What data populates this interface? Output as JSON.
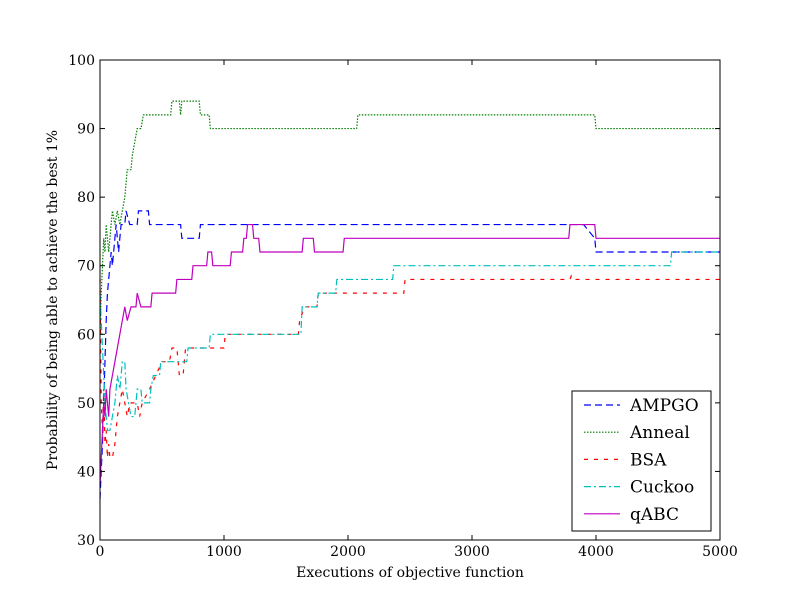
{
  "chart_data": {
    "type": "line",
    "title": "",
    "xlabel": "Executions of objective function",
    "ylabel": "Probability of being able to achieve the best 1%",
    "xlim": [
      0,
      5000
    ],
    "ylim": [
      30,
      100
    ],
    "xticks": [
      0,
      1000,
      2000,
      3000,
      4000,
      5000
    ],
    "yticks": [
      30,
      40,
      50,
      60,
      70,
      80,
      90,
      100
    ],
    "grid": false,
    "legend_position": "lower-right",
    "series": [
      {
        "name": "AMPGO",
        "color": "#0000ff",
        "dash": "7,4",
        "points": [
          [
            0,
            36
          ],
          [
            10,
            40
          ],
          [
            20,
            44
          ],
          [
            30,
            50
          ],
          [
            40,
            56
          ],
          [
            50,
            62
          ],
          [
            60,
            66
          ],
          [
            70,
            68
          ],
          [
            80,
            70
          ],
          [
            90,
            72
          ],
          [
            100,
            70
          ],
          [
            110,
            72
          ],
          [
            130,
            76
          ],
          [
            150,
            72
          ],
          [
            170,
            76
          ],
          [
            200,
            76
          ],
          [
            210,
            78
          ],
          [
            240,
            76
          ],
          [
            300,
            76
          ],
          [
            310,
            78
          ],
          [
            390,
            78
          ],
          [
            400,
            76
          ],
          [
            650,
            76
          ],
          [
            660,
            74
          ],
          [
            800,
            74
          ],
          [
            810,
            76
          ],
          [
            3900,
            76
          ],
          [
            3990,
            74
          ],
          [
            4000,
            72
          ],
          [
            5000,
            72
          ]
        ]
      },
      {
        "name": "Anneal",
        "color": "#008000",
        "dash": "1.5,1.5",
        "points": [
          [
            0,
            60
          ],
          [
            10,
            66
          ],
          [
            20,
            70
          ],
          [
            30,
            74
          ],
          [
            40,
            72
          ],
          [
            50,
            76
          ],
          [
            70,
            72
          ],
          [
            90,
            76
          ],
          [
            100,
            78
          ],
          [
            120,
            76
          ],
          [
            140,
            78
          ],
          [
            160,
            76
          ],
          [
            180,
            78
          ],
          [
            200,
            80
          ],
          [
            220,
            84
          ],
          [
            250,
            84
          ],
          [
            260,
            86
          ],
          [
            280,
            88
          ],
          [
            300,
            90
          ],
          [
            330,
            90
          ],
          [
            350,
            92
          ],
          [
            570,
            92
          ],
          [
            580,
            94
          ],
          [
            640,
            94
          ],
          [
            650,
            92
          ],
          [
            660,
            94
          ],
          [
            800,
            94
          ],
          [
            810,
            92
          ],
          [
            880,
            92
          ],
          [
            890,
            90
          ],
          [
            2070,
            90
          ],
          [
            2080,
            92
          ],
          [
            3990,
            92
          ],
          [
            4000,
            90
          ],
          [
            5000,
            90
          ]
        ]
      },
      {
        "name": "BSA",
        "color": "#ff0000",
        "dash": "4,6",
        "points": [
          [
            0,
            68
          ],
          [
            10,
            50
          ],
          [
            20,
            46
          ],
          [
            30,
            52
          ],
          [
            40,
            44
          ],
          [
            50,
            46
          ],
          [
            60,
            42
          ],
          [
            70,
            44
          ],
          [
            80,
            42
          ],
          [
            100,
            42
          ],
          [
            120,
            44
          ],
          [
            140,
            48
          ],
          [
            160,
            50
          ],
          [
            180,
            52
          ],
          [
            200,
            50
          ],
          [
            220,
            48
          ],
          [
            240,
            50
          ],
          [
            300,
            50
          ],
          [
            320,
            48
          ],
          [
            340,
            50
          ],
          [
            400,
            52
          ],
          [
            450,
            54
          ],
          [
            500,
            56
          ],
          [
            560,
            56
          ],
          [
            580,
            58
          ],
          [
            620,
            58
          ],
          [
            640,
            54
          ],
          [
            670,
            54
          ],
          [
            690,
            58
          ],
          [
            1000,
            58
          ],
          [
            1010,
            60
          ],
          [
            1600,
            60
          ],
          [
            1610,
            62
          ],
          [
            1650,
            64
          ],
          [
            1750,
            64
          ],
          [
            1760,
            66
          ],
          [
            2450,
            66
          ],
          [
            2460,
            68
          ],
          [
            3790,
            68
          ],
          [
            3800,
            68.5
          ],
          [
            3810,
            68
          ],
          [
            5000,
            68
          ]
        ]
      },
      {
        "name": "Cuckoo",
        "color": "#00bfbf",
        "dash": "7,3,2,3",
        "points": [
          [
            0,
            66
          ],
          [
            10,
            62
          ],
          [
            20,
            58
          ],
          [
            30,
            54
          ],
          [
            40,
            50
          ],
          [
            50,
            48
          ],
          [
            60,
            46
          ],
          [
            80,
            46
          ],
          [
            100,
            48
          ],
          [
            120,
            50
          ],
          [
            140,
            54
          ],
          [
            160,
            52
          ],
          [
            180,
            56
          ],
          [
            200,
            56
          ],
          [
            210,
            52
          ],
          [
            230,
            50
          ],
          [
            250,
            48
          ],
          [
            280,
            48
          ],
          [
            300,
            52
          ],
          [
            330,
            52
          ],
          [
            340,
            50
          ],
          [
            400,
            50
          ],
          [
            410,
            52
          ],
          [
            430,
            54
          ],
          [
            480,
            54
          ],
          [
            490,
            56
          ],
          [
            700,
            56
          ],
          [
            710,
            58
          ],
          [
            880,
            58
          ],
          [
            890,
            60
          ],
          [
            1620,
            60
          ],
          [
            1630,
            64
          ],
          [
            1750,
            64
          ],
          [
            1760,
            66
          ],
          [
            1900,
            66
          ],
          [
            1910,
            68
          ],
          [
            2360,
            68
          ],
          [
            2370,
            70
          ],
          [
            4600,
            70
          ],
          [
            4610,
            72
          ],
          [
            5000,
            72
          ]
        ]
      },
      {
        "name": "qABC",
        "color": "#bf00bf",
        "dash": "",
        "points": [
          [
            0,
            38
          ],
          [
            10,
            42
          ],
          [
            20,
            46
          ],
          [
            30,
            50
          ],
          [
            40,
            48
          ],
          [
            50,
            52
          ],
          [
            60,
            50
          ],
          [
            70,
            48
          ],
          [
            80,
            52
          ],
          [
            100,
            54
          ],
          [
            120,
            56
          ],
          [
            140,
            58
          ],
          [
            160,
            60
          ],
          [
            180,
            62
          ],
          [
            200,
            64
          ],
          [
            220,
            62
          ],
          [
            250,
            64
          ],
          [
            290,
            64
          ],
          [
            300,
            66
          ],
          [
            330,
            64
          ],
          [
            410,
            64
          ],
          [
            420,
            66
          ],
          [
            610,
            66
          ],
          [
            620,
            68
          ],
          [
            740,
            68
          ],
          [
            750,
            70
          ],
          [
            860,
            70
          ],
          [
            870,
            72
          ],
          [
            900,
            72
          ],
          [
            910,
            70
          ],
          [
            1050,
            70
          ],
          [
            1060,
            72
          ],
          [
            1150,
            72
          ],
          [
            1160,
            74
          ],
          [
            1180,
            74
          ],
          [
            1190,
            76
          ],
          [
            1230,
            76
          ],
          [
            1240,
            74
          ],
          [
            1280,
            74
          ],
          [
            1290,
            72
          ],
          [
            1630,
            72
          ],
          [
            1640,
            74
          ],
          [
            1720,
            74
          ],
          [
            1730,
            72
          ],
          [
            1960,
            72
          ],
          [
            1970,
            74
          ],
          [
            3780,
            74
          ],
          [
            3790,
            76
          ],
          [
            3990,
            76
          ],
          [
            4000,
            74
          ],
          [
            5000,
            74
          ]
        ]
      }
    ]
  }
}
